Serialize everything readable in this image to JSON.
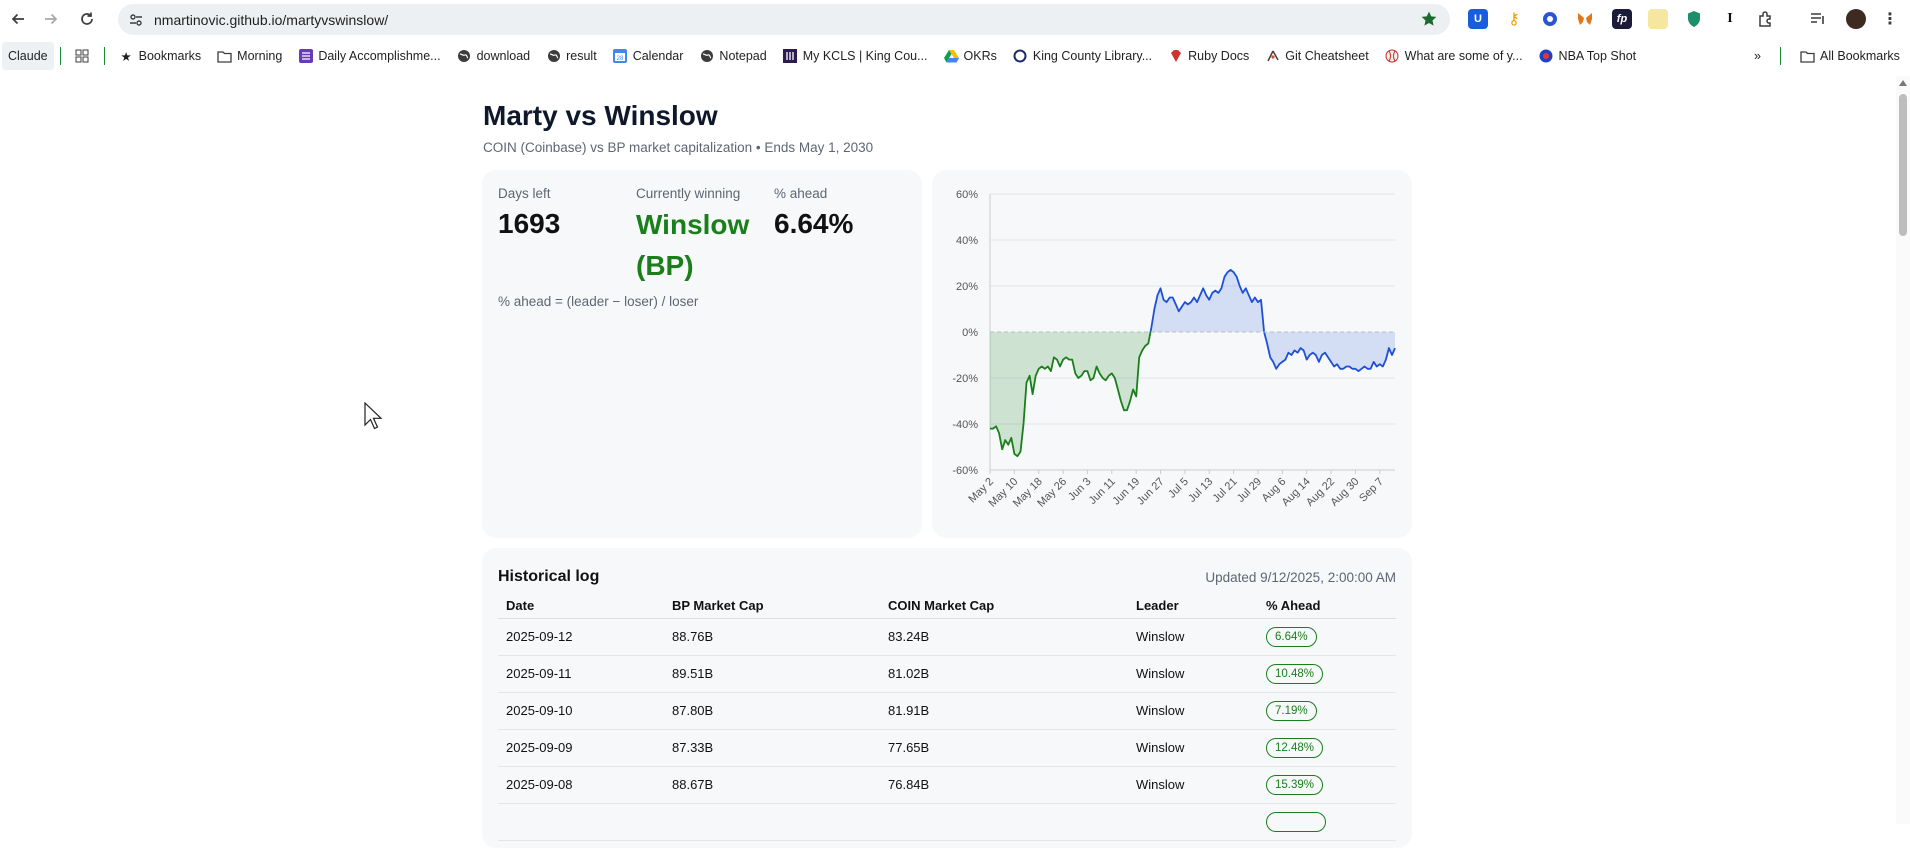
{
  "browser": {
    "url": "nmartinovic.github.io/martyvswinslow/",
    "bookmarks": [
      {
        "label": "Claude",
        "icon": "claude-icon"
      },
      {
        "label": "",
        "icon": "apps-grid-icon"
      },
      {
        "label": "Bookmarks",
        "icon": "star-icon"
      },
      {
        "label": "Morning",
        "icon": "folder-icon"
      },
      {
        "label": "Daily Accomplishme...",
        "icon": "list-icon"
      },
      {
        "label": "download",
        "icon": "globe-icon"
      },
      {
        "label": "result",
        "icon": "globe-icon"
      },
      {
        "label": "Calendar",
        "icon": "calendar-icon"
      },
      {
        "label": "Notepad",
        "icon": "globe-icon"
      },
      {
        "label": "My KCLS | King Cou...",
        "icon": "library-icon"
      },
      {
        "label": "OKRs",
        "icon": "drive-icon"
      },
      {
        "label": "King County Library...",
        "icon": "circle-icon"
      },
      {
        "label": "Ruby Docs",
        "icon": "ruby-icon"
      },
      {
        "label": "Git Cheatsheet",
        "icon": "git-icon"
      },
      {
        "label": "What are some of y...",
        "icon": "baseball-icon"
      },
      {
        "label": "NBA Top Shot",
        "icon": "nba-icon"
      }
    ],
    "all_bookmarks": "All Bookmarks"
  },
  "page": {
    "title": "Marty vs Winslow",
    "subtitle": "COIN (Coinbase) vs BP market capitalization • Ends May 1, 2030",
    "stats": {
      "days_left_label": "Days left",
      "days_left_value": "1693",
      "winning_label": "Currently winning",
      "winning_value": "Winslow (BP)",
      "ahead_label": "% ahead",
      "ahead_value": "6.64%",
      "formula": "% ahead = (leader − loser) / loser"
    },
    "log": {
      "title": "Historical log",
      "updated": "Updated 9/12/2025, 2:00:00 AM",
      "columns": [
        "Date",
        "BP Market Cap",
        "COIN Market Cap",
        "Leader",
        "% Ahead"
      ],
      "rows": [
        {
          "date": "2025-09-12",
          "bp": "88.76B",
          "coin": "83.24B",
          "leader": "Winslow",
          "ahead": "6.64%"
        },
        {
          "date": "2025-09-11",
          "bp": "89.51B",
          "coin": "81.02B",
          "leader": "Winslow",
          "ahead": "10.48%"
        },
        {
          "date": "2025-09-10",
          "bp": "87.80B",
          "coin": "81.91B",
          "leader": "Winslow",
          "ahead": "7.19%"
        },
        {
          "date": "2025-09-09",
          "bp": "87.33B",
          "coin": "77.65B",
          "leader": "Winslow",
          "ahead": "12.48%"
        },
        {
          "date": "2025-09-08",
          "bp": "88.67B",
          "coin": "76.84B",
          "leader": "Winslow",
          "ahead": "15.39%"
        },
        {
          "date": "",
          "bp": "",
          "coin": "",
          "leader": "",
          "ahead": ""
        }
      ]
    }
  },
  "colors": {
    "winslow": "#1a7f1a",
    "marty": "#1d4fd8"
  },
  "chart_data": {
    "type": "area",
    "title": "",
    "xlabel": "",
    "ylabel": "",
    "ylim": [
      -60,
      60
    ],
    "ytick_labels": [
      "60%",
      "40%",
      "20%",
      "0%",
      "-20%",
      "-40%",
      "-60%"
    ],
    "xtick_labels": [
      "May 2",
      "May 10",
      "May 18",
      "May 26",
      "Jun 3",
      "Jun 11",
      "Jun 19",
      "Jun 27",
      "Jul 5",
      "Jul 13",
      "Jul 21",
      "Jul 29",
      "Aug 6",
      "Aug 14",
      "Aug 22",
      "Aug 30",
      "Sep 7"
    ],
    "grid": true,
    "x_start": "2025-05-02",
    "x_end": "2025-09-12",
    "series": [
      {
        "values": [
          [
            "2025-05-02",
            -42
          ],
          [
            "2025-05-03",
            -42
          ],
          [
            "2025-05-04",
            -41
          ],
          [
            "2025-05-05",
            -44
          ],
          [
            "2025-05-06",
            -51
          ],
          [
            "2025-05-07",
            -47
          ],
          [
            "2025-05-08",
            -49
          ],
          [
            "2025-05-09",
            -46
          ],
          [
            "2025-05-10",
            -53
          ],
          [
            "2025-05-11",
            -54
          ],
          [
            "2025-05-12",
            -52
          ],
          [
            "2025-05-13",
            -40
          ],
          [
            "2025-05-14",
            -22
          ],
          [
            "2025-05-15",
            -19
          ],
          [
            "2025-05-16",
            -27
          ],
          [
            "2025-05-17",
            -19
          ],
          [
            "2025-05-18",
            -16
          ],
          [
            "2025-05-19",
            -15
          ],
          [
            "2025-05-20",
            -16
          ],
          [
            "2025-05-21",
            -15
          ],
          [
            "2025-05-22",
            -17
          ],
          [
            "2025-05-23",
            -11
          ],
          [
            "2025-05-24",
            -12
          ],
          [
            "2025-05-25",
            -15
          ],
          [
            "2025-05-26",
            -12
          ],
          [
            "2025-05-27",
            -11
          ],
          [
            "2025-05-28",
            -12
          ],
          [
            "2025-05-29",
            -12
          ],
          [
            "2025-05-30",
            -18
          ],
          [
            "2025-05-31",
            -20
          ],
          [
            "2025-06-01",
            -19
          ],
          [
            "2025-06-02",
            -17
          ],
          [
            "2025-06-03",
            -17
          ],
          [
            "2025-06-04",
            -21
          ],
          [
            "2025-06-05",
            -20
          ],
          [
            "2025-06-06",
            -15
          ],
          [
            "2025-06-07",
            -18
          ],
          [
            "2025-06-08",
            -20
          ],
          [
            "2025-06-09",
            -21
          ],
          [
            "2025-06-10",
            -19
          ],
          [
            "2025-06-11",
            -18
          ],
          [
            "2025-06-12",
            -20
          ],
          [
            "2025-06-13",
            -25
          ],
          [
            "2025-06-14",
            -30
          ],
          [
            "2025-06-15",
            -34
          ],
          [
            "2025-06-16",
            -34
          ],
          [
            "2025-06-17",
            -30
          ],
          [
            "2025-06-18",
            -25
          ],
          [
            "2025-06-19",
            -28
          ],
          [
            "2025-06-20",
            -11
          ],
          [
            "2025-06-21",
            -8
          ],
          [
            "2025-06-22",
            -6
          ],
          [
            "2025-06-23",
            -5
          ],
          [
            "2025-06-24",
            2
          ],
          [
            "2025-06-25",
            10
          ],
          [
            "2025-06-26",
            16
          ],
          [
            "2025-06-27",
            19
          ],
          [
            "2025-06-28",
            14
          ],
          [
            "2025-06-29",
            13
          ],
          [
            "2025-06-30",
            15
          ],
          [
            "2025-07-01",
            15
          ],
          [
            "2025-07-02",
            12
          ],
          [
            "2025-07-03",
            9
          ],
          [
            "2025-07-04",
            11
          ],
          [
            "2025-07-05",
            13
          ],
          [
            "2025-07-06",
            12
          ],
          [
            "2025-07-07",
            13
          ],
          [
            "2025-07-08",
            15
          ],
          [
            "2025-07-09",
            13
          ],
          [
            "2025-07-10",
            16
          ],
          [
            "2025-07-11",
            19
          ],
          [
            "2025-07-12",
            16
          ],
          [
            "2025-07-13",
            14
          ],
          [
            "2025-07-14",
            17
          ],
          [
            "2025-07-15",
            18
          ],
          [
            "2025-07-16",
            17
          ],
          [
            "2025-07-17",
            19
          ],
          [
            "2025-07-18",
            24
          ],
          [
            "2025-07-19",
            26
          ],
          [
            "2025-07-20",
            27
          ],
          [
            "2025-07-21",
            26
          ],
          [
            "2025-07-22",
            24
          ],
          [
            "2025-07-23",
            20
          ],
          [
            "2025-07-24",
            17
          ],
          [
            "2025-07-25",
            19
          ],
          [
            "2025-07-26",
            16
          ],
          [
            "2025-07-27",
            13
          ],
          [
            "2025-07-28",
            15
          ],
          [
            "2025-07-29",
            13
          ],
          [
            "2025-07-30",
            14
          ],
          [
            "2025-07-31",
            0
          ],
          [
            "2025-08-01",
            -5
          ],
          [
            "2025-08-02",
            -11
          ],
          [
            "2025-08-03",
            -13
          ],
          [
            "2025-08-04",
            -16
          ],
          [
            "2025-08-05",
            -14
          ],
          [
            "2025-08-06",
            -13
          ],
          [
            "2025-08-07",
            -12
          ],
          [
            "2025-08-08",
            -9
          ],
          [
            "2025-08-09",
            -10
          ],
          [
            "2025-08-10",
            -8
          ],
          [
            "2025-08-11",
            -9
          ],
          [
            "2025-08-12",
            -7
          ],
          [
            "2025-08-13",
            -8
          ],
          [
            "2025-08-14",
            -12
          ],
          [
            "2025-08-15",
            -10
          ],
          [
            "2025-08-16",
            -9
          ],
          [
            "2025-08-17",
            -10
          ],
          [
            "2025-08-18",
            -13
          ],
          [
            "2025-08-19",
            -10
          ],
          [
            "2025-08-20",
            -9
          ],
          [
            "2025-08-21",
            -11
          ],
          [
            "2025-08-22",
            -13
          ],
          [
            "2025-08-23",
            -15
          ],
          [
            "2025-08-24",
            -14
          ],
          [
            "2025-08-25",
            -16
          ],
          [
            "2025-08-26",
            -16
          ],
          [
            "2025-08-27",
            -15
          ],
          [
            "2025-08-28",
            -15
          ],
          [
            "2025-08-29",
            -16
          ],
          [
            "2025-08-30",
            -16
          ],
          [
            "2025-08-31",
            -17
          ],
          [
            "2025-09-01",
            -16
          ],
          [
            "2025-09-02",
            -15
          ],
          [
            "2025-09-03",
            -16
          ],
          [
            "2025-09-04",
            -16
          ],
          [
            "2025-09-05",
            -13
          ],
          [
            "2025-09-06",
            -15
          ],
          [
            "2025-09-07",
            -14
          ],
          [
            "2025-09-08",
            -15
          ],
          [
            "2025-09-09",
            -12
          ],
          [
            "2025-09-10",
            -7
          ],
          [
            "2025-09-11",
            -10
          ],
          [
            "2025-09-12",
            -7
          ]
        ]
      }
    ]
  }
}
